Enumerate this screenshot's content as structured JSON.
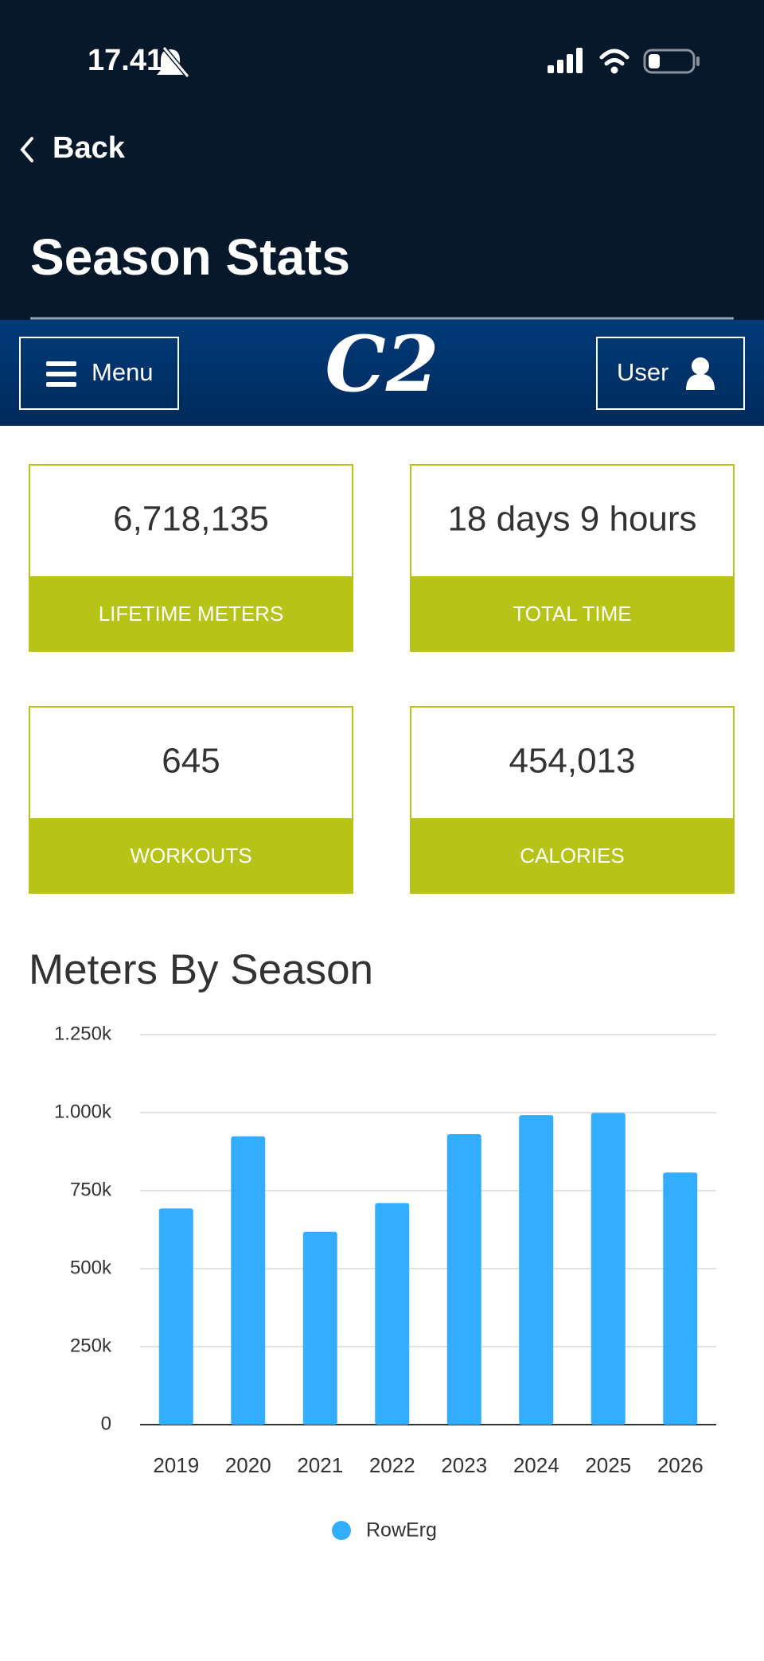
{
  "status": {
    "time": "17.41"
  },
  "nav": {
    "back": "Back"
  },
  "header": {
    "title": "Season Stats"
  },
  "navbar": {
    "menu": "Menu",
    "logo": "C2",
    "user": "User"
  },
  "stats": [
    {
      "value": "6,718,135",
      "label": "LIFETIME METERS"
    },
    {
      "value": "18 days 9 hours",
      "label": "TOTAL TIME"
    },
    {
      "value": "645",
      "label": "WORKOUTS"
    },
    {
      "value": "454,013",
      "label": "CALORIES"
    }
  ],
  "chart_data": {
    "type": "bar",
    "title": "Meters By Season",
    "categories": [
      "2019",
      "2020",
      "2021",
      "2022",
      "2023",
      "2024",
      "2025",
      "2026"
    ],
    "series": [
      {
        "name": "RowErg",
        "color": "#33adff",
        "values": [
          693,
          924,
          618,
          710,
          931,
          992,
          999,
          808
        ]
      }
    ],
    "ylim": [
      0,
      1250
    ],
    "yticks": [
      0,
      {
        "value": 250,
        "label": "250k"
      },
      {
        "value": 500,
        "label": "500k"
      },
      {
        "value": 750,
        "label": "750k"
      },
      {
        "value": 1000,
        "label": "1.000k"
      },
      {
        "value": 1250,
        "label": "1.250k"
      }
    ],
    "grid": true
  }
}
